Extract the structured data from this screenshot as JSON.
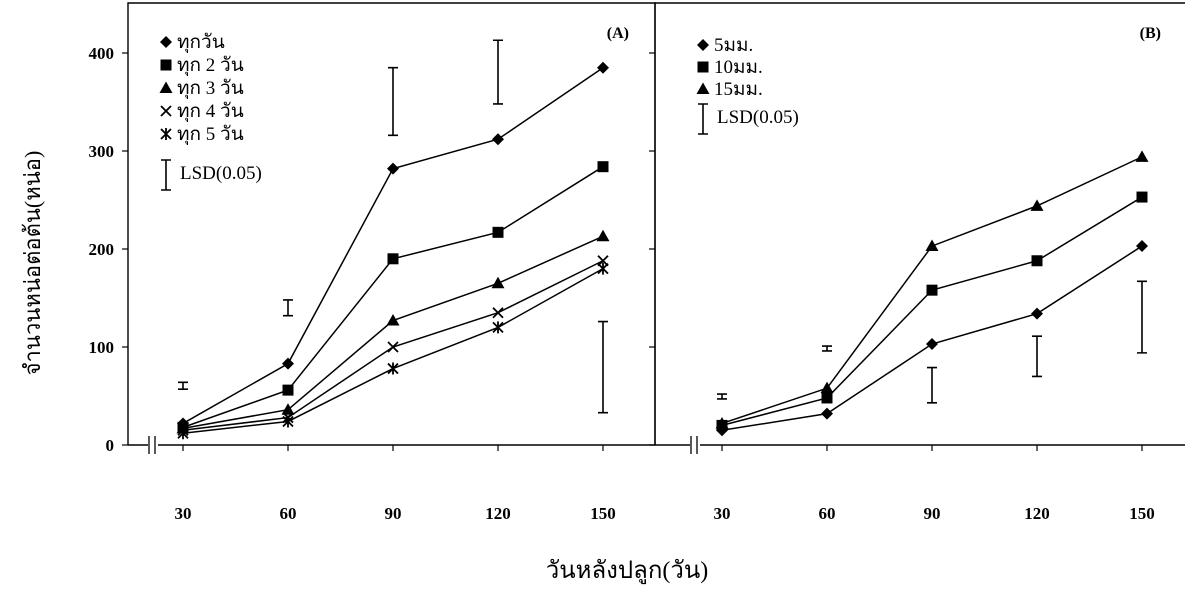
{
  "figure": {
    "ylabel": "จำนวนหน่อต่อต้น(หน่อ)",
    "xlabel": "วันหลังปลูก(วัน)"
  },
  "chart_data": [
    {
      "type": "line",
      "panel_label": "(A)",
      "x": [
        30,
        60,
        90,
        120,
        150
      ],
      "ylim": [
        0,
        400
      ],
      "yticks": [
        0,
        100,
        200,
        300,
        400
      ],
      "series": [
        {
          "name": "ทุกวัน",
          "marker": "diamond",
          "values": [
            22,
            83,
            282,
            312,
            385
          ]
        },
        {
          "name": "ทุก 2 วัน",
          "marker": "square",
          "values": [
            18,
            56,
            190,
            217,
            284
          ]
        },
        {
          "name": "ทุก 3 วัน",
          "marker": "triangle",
          "values": [
            17,
            36,
            127,
            165,
            213
          ]
        },
        {
          "name": "ทุก 4 วัน",
          "marker": "x",
          "values": [
            15,
            28,
            100,
            135,
            188
          ]
        },
        {
          "name": "ทุก 5 วัน",
          "marker": "asterisk",
          "values": [
            12,
            24,
            78,
            120,
            180
          ]
        }
      ],
      "lsd": {
        "name": "LSD(0.05)",
        "bars": [
          {
            "x": 30,
            "low": 57,
            "high": 64
          },
          {
            "x": 60,
            "low": 132,
            "high": 148
          },
          {
            "x": 90,
            "low": 316,
            "high": 385
          },
          {
            "x": 120,
            "low": 348,
            "high": 413
          },
          {
            "x": 150,
            "low": 33,
            "high": 126
          }
        ]
      }
    },
    {
      "type": "line",
      "panel_label": "(B)",
      "x": [
        30,
        60,
        90,
        120,
        150
      ],
      "ylim": [
        0,
        400
      ],
      "yticks": [
        0,
        100,
        200,
        300,
        400
      ],
      "series": [
        {
          "name": "5มม.",
          "marker": "diamond",
          "values": [
            15,
            32,
            103,
            134,
            203
          ]
        },
        {
          "name": "10มม.",
          "marker": "square",
          "values": [
            20,
            48,
            158,
            188,
            253
          ]
        },
        {
          "name": "15มม.",
          "marker": "triangle",
          "values": [
            22,
            58,
            203,
            244,
            294
          ]
        }
      ],
      "lsd": {
        "name": "LSD(0.05)",
        "bars": [
          {
            "x": 30,
            "low": 47,
            "high": 52
          },
          {
            "x": 60,
            "low": 96,
            "high": 101
          },
          {
            "x": 90,
            "low": 43,
            "high": 79
          },
          {
            "x": 120,
            "low": 70,
            "high": 111
          },
          {
            "x": 150,
            "low": 94,
            "high": 167
          }
        ]
      }
    }
  ]
}
